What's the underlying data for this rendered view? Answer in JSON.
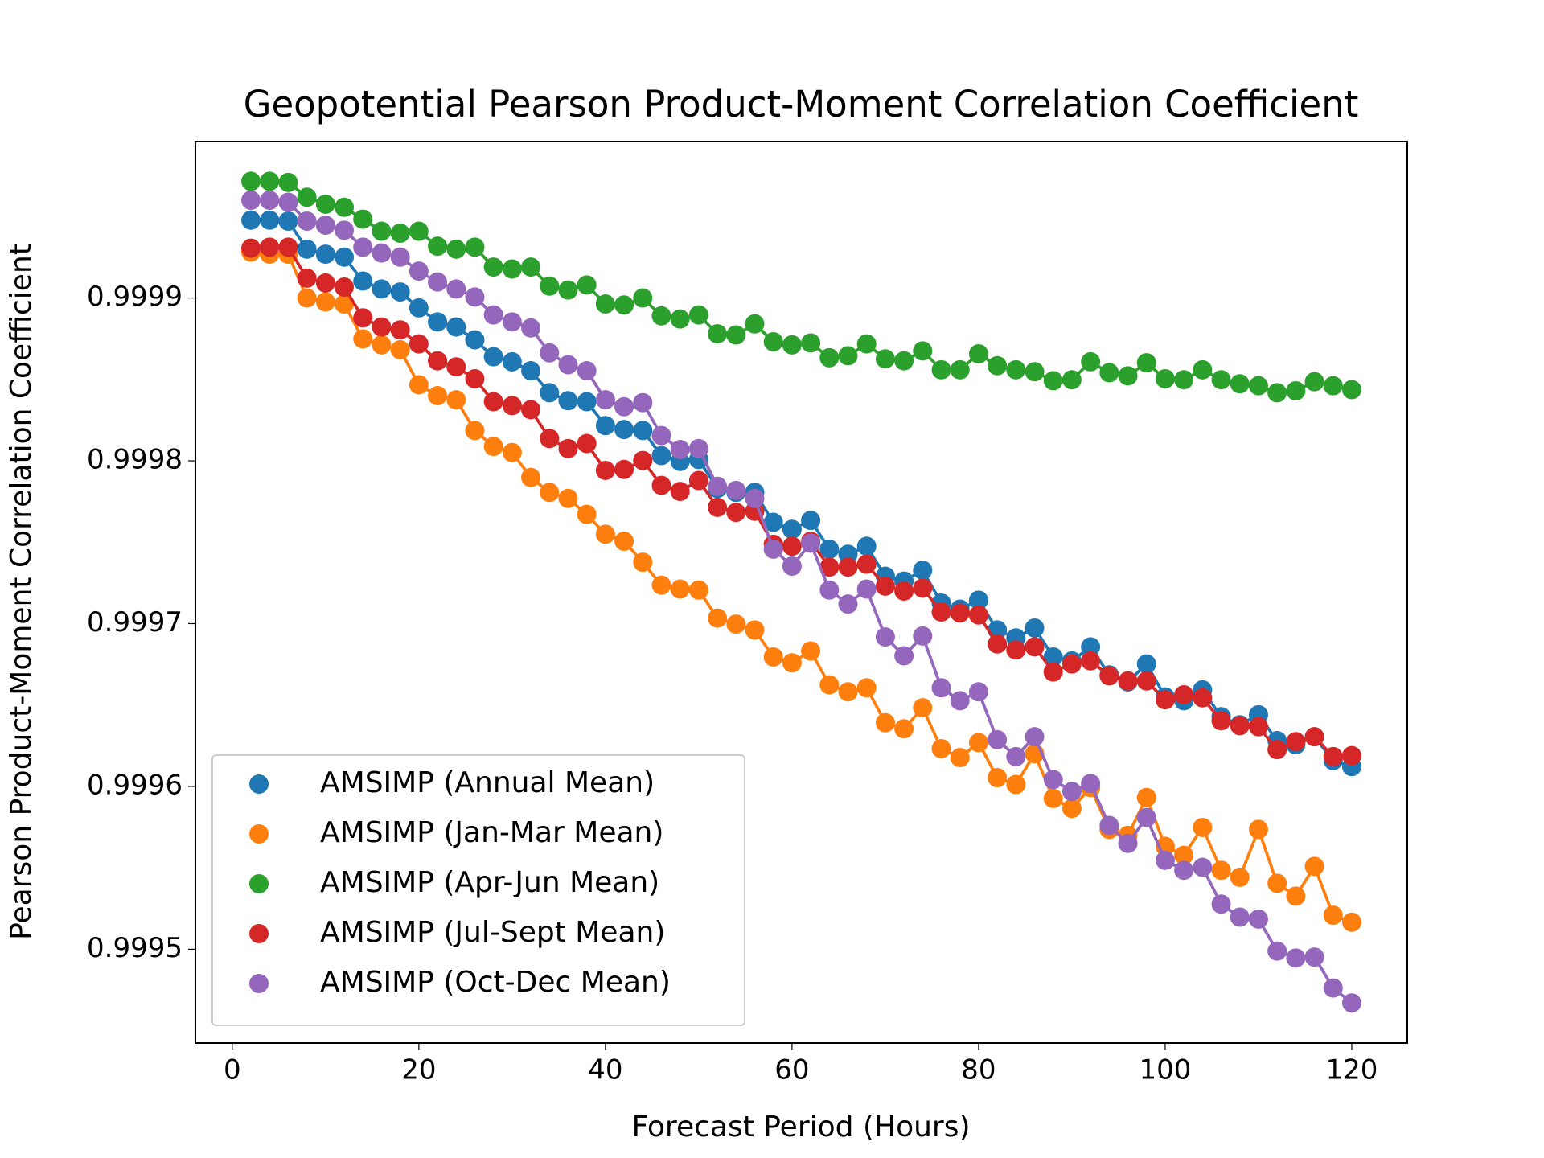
{
  "chart_data": {
    "type": "line",
    "title": "Geopotential Pearson Product-Moment Correlation Coefficient",
    "x_label": "Forecast Period (Hours)",
    "y_label": "Pearson Product-Moment Correlation Coefficient",
    "x": [
      2,
      4,
      6,
      8,
      10,
      12,
      14,
      16,
      18,
      20,
      22,
      24,
      26,
      28,
      30,
      32,
      34,
      36,
      38,
      40,
      42,
      44,
      46,
      48,
      50,
      52,
      54,
      56,
      58,
      60,
      62,
      64,
      66,
      68,
      70,
      72,
      74,
      76,
      78,
      80,
      82,
      84,
      86,
      88,
      90,
      92,
      94,
      96,
      98,
      100,
      102,
      104,
      106,
      108,
      110,
      112,
      114,
      116,
      118,
      120
    ],
    "xlim": [
      -3.95,
      125.95
    ],
    "xticks": [
      0,
      20,
      40,
      60,
      80,
      100,
      120
    ],
    "ylim": [
      0.9994424,
      0.9999961
    ],
    "yticks": [
      0.9995,
      0.9996,
      0.9997,
      0.9998,
      0.9999
    ],
    "legend": "lower left",
    "markers": true,
    "series": [
      {
        "name": "AMSIMP (Annual Mean)",
        "color": "#1f77b4",
        "values": [
          0.9999478,
          0.9999478,
          0.9999472,
          0.99993,
          0.9999269,
          0.9999251,
          0.9999104,
          0.9999055,
          0.9999037,
          0.9998939,
          0.9998853,
          0.9998822,
          0.9998743,
          0.9998639,
          0.9998608,
          0.9998553,
          0.9998418,
          0.9998369,
          0.9998363,
          0.9998216,
          0.9998192,
          0.9998186,
          0.9998032,
          0.9997996,
          0.9998008,
          0.999783,
          0.9997806,
          0.9997806,
          0.9997622,
          0.9997579,
          0.9997634,
          0.9997457,
          0.9997426,
          0.9997475,
          0.9997291,
          0.9997261,
          0.9997328,
          0.9997126,
          0.9997089,
          0.9997144,
          0.9996961,
          0.9996912,
          0.9996973,
          0.9996795,
          0.9996771,
          0.9996857,
          0.9996685,
          0.9996642,
          0.9996752,
          0.999655,
          0.9996526,
          0.9996593,
          0.9996428,
          0.9996379,
          0.999644,
          0.9996281,
          0.9996256,
          0.9996305,
          0.9996159,
          0.9996122
        ]
      },
      {
        "name": "AMSIMP (Jan-Mar Mean)",
        "color": "#ff7f0e",
        "values": [
          0.9999282,
          0.9999269,
          0.9999269,
          0.9999,
          0.9998976,
          0.9998963,
          0.9998749,
          0.9998712,
          0.9998682,
          0.9998467,
          0.99984,
          0.9998375,
          0.9998186,
          0.9998088,
          0.9998051,
          0.9997898,
          0.9997806,
          0.9997769,
          0.9997671,
          0.9997549,
          0.9997506,
          0.9997377,
          0.9997236,
          0.9997212,
          0.9997206,
          0.9997034,
          0.9996997,
          0.9996961,
          0.9996795,
          0.9996759,
          0.9996832,
          0.9996624,
          0.9996581,
          0.9996606,
          0.9996391,
          0.9996354,
          0.9996483,
          0.9996232,
          0.9996177,
          0.9996269,
          0.9996054,
          0.9996012,
          0.9996201,
          0.9995926,
          0.9995865,
          0.9995993,
          0.9995736,
          0.9995699,
          0.9995932,
          0.9995632,
          0.9995577,
          0.9995748,
          0.9995485,
          0.9995442,
          0.9995736,
          0.9995405,
          0.9995326,
          0.9995509,
          0.9995209,
          0.9995166
        ]
      },
      {
        "name": "AMSIMP (Apr-Jun Mean)",
        "color": "#2ca02c",
        "values": [
          0.9999717,
          0.9999717,
          0.999971,
          0.9999619,
          0.9999576,
          0.9999557,
          0.9999484,
          0.999941,
          0.9999398,
          0.999941,
          0.9999318,
          0.99993,
          0.9999312,
          0.999919,
          0.9999178,
          0.999919,
          0.9999073,
          0.9999049,
          0.999908,
          0.9998963,
          0.9998957,
          0.9999,
          0.999889,
          0.9998871,
          0.9998896,
          0.999878,
          0.9998773,
          0.9998841,
          0.9998731,
          0.9998712,
          0.9998724,
          0.9998633,
          0.9998645,
          0.9998718,
          0.9998626,
          0.9998614,
          0.9998675,
          0.9998559,
          0.9998559,
          0.9998657,
          0.9998584,
          0.9998559,
          0.9998547,
          0.9998492,
          0.9998498,
          0.9998608,
          0.9998541,
          0.9998522,
          0.9998602,
          0.9998504,
          0.9998498,
          0.9998559,
          0.9998498,
          0.9998473,
          0.9998461,
          0.9998418,
          0.999843,
          0.9998486,
          0.9998461,
          0.9998437
        ]
      },
      {
        "name": "AMSIMP (Jul-Sept Mean)",
        "color": "#d62728",
        "values": [
          0.9999306,
          0.9999312,
          0.9999312,
          0.9999122,
          0.9999092,
          0.9999067,
          0.9998878,
          0.9998822,
          0.9998804,
          0.9998718,
          0.9998614,
          0.9998577,
          0.9998504,
          0.9998363,
          0.9998339,
          0.9998314,
          0.9998137,
          0.9998075,
          0.9998106,
          0.9997941,
          0.9997947,
          0.9998002,
          0.9997849,
          0.9997812,
          0.9997879,
          0.9997714,
          0.9997683,
          0.999769,
          0.9997487,
          0.9997475,
          0.9997506,
          0.9997347,
          0.9997347,
          0.9997365,
          0.999723,
          0.99972,
          0.9997218,
          0.9997071,
          0.9997065,
          0.9997053,
          0.9996875,
          0.9996838,
          0.9996857,
          0.9996703,
          0.9996752,
          0.9996771,
          0.9996679,
          0.9996648,
          0.9996648,
          0.9996532,
          0.9996563,
          0.9996544,
          0.9996403,
          0.9996373,
          0.9996367,
          0.9996226,
          0.9996275,
          0.9996305,
          0.9996183,
          0.9996189
        ]
      },
      {
        "name": "AMSIMP (Oct-Dec Mean)",
        "color": "#9467bd",
        "values": [
          0.99996,
          0.99996,
          0.9999588,
          0.9999472,
          0.9999447,
          0.9999416,
          0.9999312,
          0.9999276,
          0.9999251,
          0.9999165,
          0.9999098,
          0.9999055,
          0.9999006,
          0.9998896,
          0.9998853,
          0.9998816,
          0.9998663,
          0.999859,
          0.9998553,
          0.9998375,
          0.9998332,
          0.9998357,
          0.9998155,
          0.9998069,
          0.9998075,
          0.9997843,
          0.9997818,
          0.9997769,
          0.9997457,
          0.9997353,
          0.9997494,
          0.9997206,
          0.999712,
          0.9997212,
          0.9996918,
          0.9996802,
          0.9996924,
          0.9996606,
          0.9996526,
          0.9996581,
          0.9996287,
          0.9996183,
          0.9996305,
          0.9996042,
          0.9995969,
          0.9996018,
          0.999576,
          0.999565,
          0.9995809,
          0.9995546,
          0.9995485,
          0.9995503,
          0.9995277,
          0.9995197,
          0.9995185,
          0.9994989,
          0.9994946,
          0.9994952,
          0.9994762,
          0.999467
        ]
      }
    ]
  }
}
